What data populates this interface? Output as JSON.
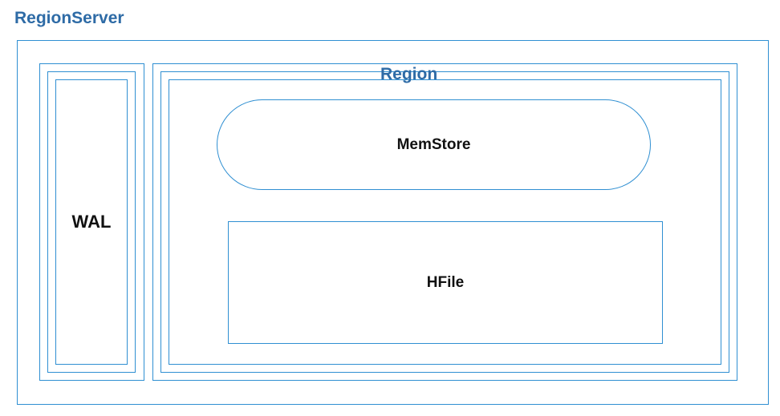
{
  "diagram": {
    "region_server_label": "RegionServer",
    "region_label": "Region",
    "wal_label": "WAL",
    "memstore_label": "MemStore",
    "hfile_label": "HFile"
  },
  "colors": {
    "border": "#2f8fd2",
    "title": "#2e6ba6",
    "text": "#111111"
  }
}
